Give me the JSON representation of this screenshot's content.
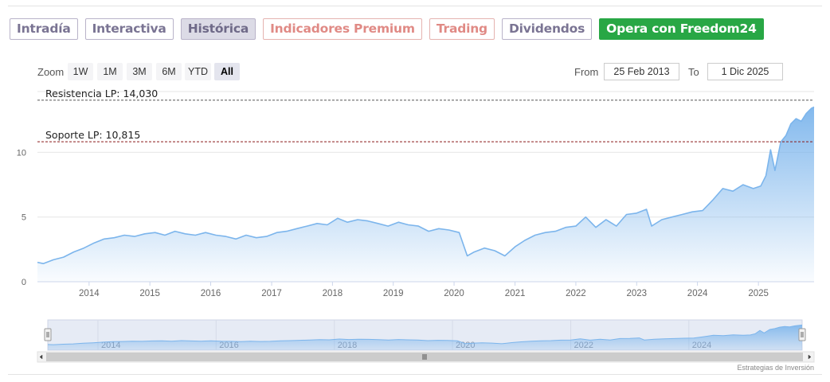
{
  "tabs": [
    {
      "label": "Intradía",
      "style": "normal"
    },
    {
      "label": "Interactiva",
      "style": "normal"
    },
    {
      "label": "Histórica",
      "style": "active"
    },
    {
      "label": "Indicadores Premium",
      "style": "premium"
    },
    {
      "label": "Trading",
      "style": "premium"
    },
    {
      "label": "Dividendos",
      "style": "normal"
    },
    {
      "label": "Opera con Freedom24",
      "style": "green"
    }
  ],
  "toolbar": {
    "zoom_label": "Zoom",
    "zoom_buttons": [
      "1W",
      "1M",
      "3M",
      "6M",
      "YTD",
      "All"
    ],
    "active_zoom": "All",
    "from_label": "From",
    "from_value": "25 Feb 2013",
    "to_label": "To",
    "to_value": "1 Dic 2025"
  },
  "credit": "Estrategias de Inversión",
  "colors": {
    "line": "#7cb5ec",
    "area_top": "#7cb5ec",
    "resistance_line": "#555555",
    "support_line": "#8b1a1a",
    "active_tab_bg": "#dcdbe6",
    "premium_text": "#e08a85",
    "cta_green": "#28a745"
  },
  "chart_data": {
    "type": "area",
    "title": "",
    "xlabel": "",
    "ylabel": "",
    "x_ticks": [
      "2014",
      "2015",
      "2016",
      "2017",
      "2018",
      "2019",
      "2020",
      "2021",
      "2022",
      "2023",
      "2024",
      "2025"
    ],
    "y_ticks": [
      "0",
      "5",
      "10"
    ],
    "xlim": [
      "2013-02-25",
      "2025-12-01"
    ],
    "ylim": [
      0,
      14.7
    ],
    "grid": true,
    "legend": "none",
    "plot_lines": [
      {
        "label": "Resistencia LP: 14,030",
        "value": 14.03,
        "style": "dashed"
      },
      {
        "label": "Soporte LP: 10,815",
        "value": 10.815,
        "style": "dashed"
      }
    ],
    "series": [
      {
        "x": [
          "2013-02-25",
          "2013-04-01",
          "2013-06-01",
          "2013-08-01",
          "2013-10-01",
          "2013-12-01",
          "2014-02-01",
          "2014-04-01",
          "2014-06-01",
          "2014-08-01",
          "2014-10-01",
          "2014-12-01",
          "2015-02-01",
          "2015-04-01",
          "2015-06-01",
          "2015-08-01",
          "2015-10-01",
          "2015-12-01",
          "2016-02-01",
          "2016-04-01",
          "2016-06-01",
          "2016-08-01",
          "2016-10-01",
          "2016-12-01",
          "2017-02-01",
          "2017-04-01",
          "2017-06-01",
          "2017-08-01",
          "2017-10-01",
          "2017-12-01",
          "2018-02-01",
          "2018-04-01",
          "2018-06-01",
          "2018-08-01",
          "2018-10-01",
          "2018-12-01",
          "2019-02-01",
          "2019-04-01",
          "2019-06-01",
          "2019-08-01",
          "2019-10-01",
          "2019-12-01",
          "2020-02-01",
          "2020-03-20",
          "2020-05-01",
          "2020-07-01",
          "2020-09-01",
          "2020-11-01",
          "2021-01-01",
          "2021-03-01",
          "2021-05-01",
          "2021-07-01",
          "2021-09-01",
          "2021-11-01",
          "2022-01-01",
          "2022-03-01",
          "2022-05-01",
          "2022-07-01",
          "2022-09-01",
          "2022-11-01",
          "2023-01-01",
          "2023-03-01",
          "2023-04-01",
          "2023-06-01",
          "2023-08-01",
          "2023-10-01",
          "2023-12-01",
          "2024-02-01",
          "2024-04-01",
          "2024-06-01",
          "2024-08-01",
          "2024-10-01",
          "2024-12-01",
          "2025-01-15",
          "2025-02-15",
          "2025-03-15",
          "2025-04-10",
          "2025-05-15",
          "2025-06-15",
          "2025-07-15",
          "2025-08-15",
          "2025-09-15",
          "2025-10-15",
          "2025-11-15",
          "2025-12-01"
        ],
        "values": [
          1.5,
          1.4,
          1.7,
          1.9,
          2.3,
          2.6,
          3.0,
          3.3,
          3.4,
          3.6,
          3.5,
          3.7,
          3.8,
          3.6,
          3.9,
          3.7,
          3.6,
          3.8,
          3.6,
          3.5,
          3.3,
          3.6,
          3.4,
          3.5,
          3.8,
          3.9,
          4.1,
          4.3,
          4.5,
          4.4,
          4.9,
          4.6,
          4.8,
          4.7,
          4.5,
          4.3,
          4.6,
          4.4,
          4.3,
          3.9,
          4.1,
          4.0,
          3.8,
          2.0,
          2.3,
          2.6,
          2.4,
          2.0,
          2.7,
          3.2,
          3.6,
          3.8,
          3.9,
          4.2,
          4.3,
          5.0,
          4.2,
          4.8,
          4.3,
          5.2,
          5.3,
          5.6,
          4.3,
          4.8,
          5.0,
          5.2,
          5.4,
          5.5,
          6.3,
          7.2,
          7.0,
          7.5,
          7.2,
          7.4,
          8.2,
          10.2,
          8.6,
          10.8,
          11.3,
          12.2,
          12.6,
          12.4,
          13.0,
          13.4,
          13.5
        ]
      }
    ]
  }
}
